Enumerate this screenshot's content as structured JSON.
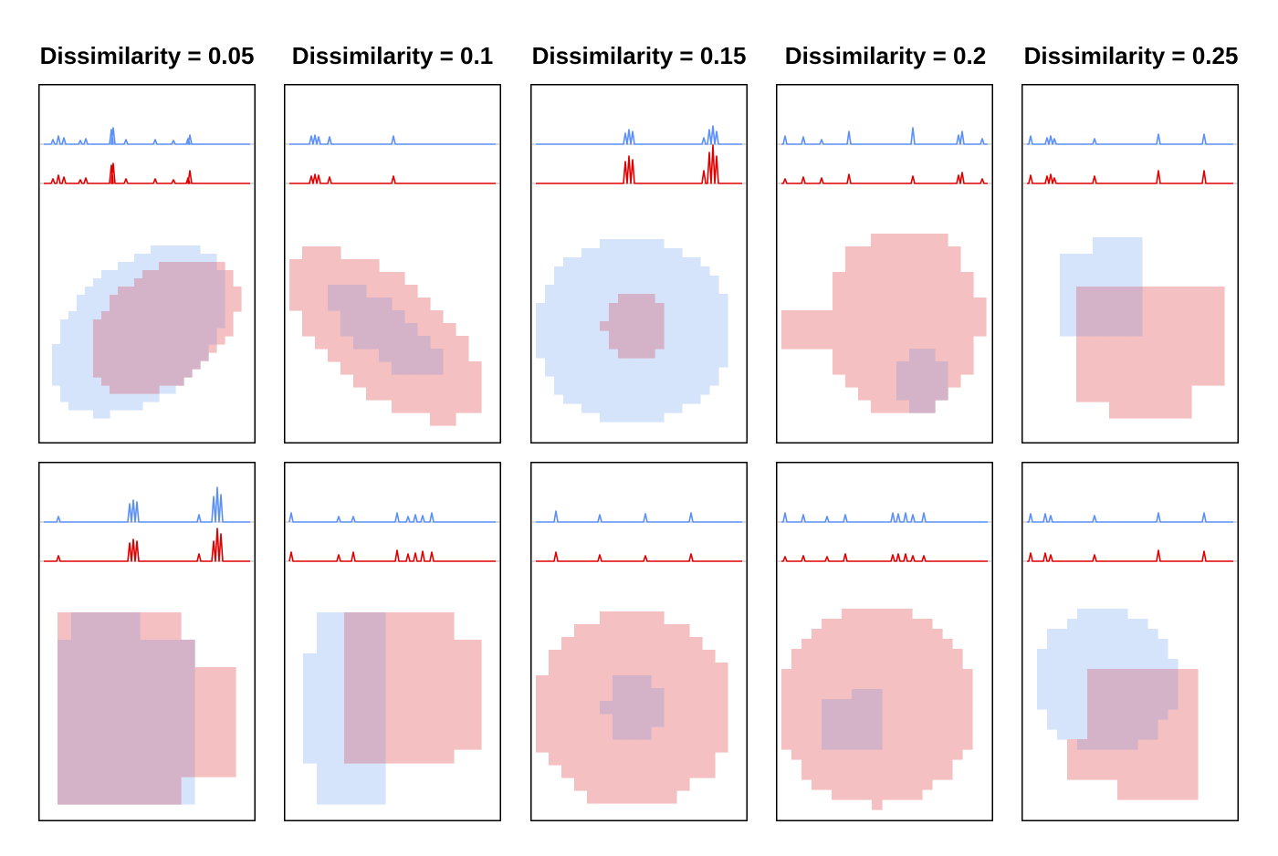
{
  "column_titles": [
    "Dissimilarity = 0.05",
    "Dissimilarity = 0.1",
    "Dissimilarity = 0.15",
    "Dissimilarity = 0.2",
    "Dissimilarity = 0.25"
  ],
  "colors": {
    "blue_line": "#5b8ff9",
    "red_line": "#e00000",
    "blue_fill": "#d6e4fb",
    "red_fill": "#f4c0c2",
    "overlap_fill": "#d4b3c8",
    "frame": "#000000",
    "baseline_gray": "#b4b4b4"
  }
}
